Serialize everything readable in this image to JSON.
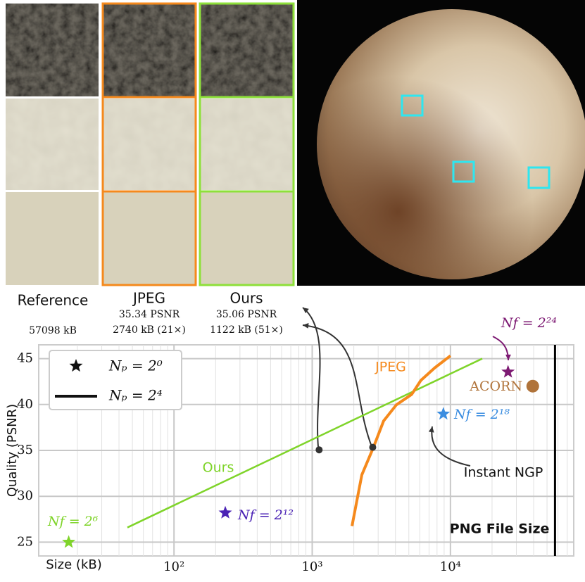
{
  "panels": [
    {
      "label": "Reference",
      "size": "57098 kB"
    },
    {
      "label": "JPEG",
      "psnr": "35.34 PSNR",
      "size": "2740 kB (21×)"
    },
    {
      "label": "Ours",
      "psnr": "35.06 PSNR",
      "size": "1122 kB (51×)"
    }
  ],
  "chart_data": {
    "type": "line",
    "xlabel": "Size (kB)",
    "ylabel": "Quality (PSNR)",
    "xscale": "log",
    "xlim": [
      10.5,
      78000
    ],
    "ylim": [
      23.5,
      46.5
    ],
    "xticks": [
      {
        "value": 100,
        "label": "10²"
      },
      {
        "value": 1000,
        "label": "10³"
      },
      {
        "value": 10000,
        "label": "10⁴"
      }
    ],
    "xminor": [
      20,
      30,
      40,
      50,
      60,
      70,
      80,
      90,
      200,
      300,
      400,
      500,
      600,
      700,
      800,
      900,
      2000,
      3000,
      4000,
      5000,
      6000,
      7000,
      8000,
      9000,
      20000,
      30000,
      40000,
      50000,
      60000,
      70000
    ],
    "yticks": [
      25,
      30,
      35,
      40,
      45
    ],
    "grid": true,
    "legend": [
      "Nₚ = 2⁰",
      "Nₚ = 2⁴"
    ],
    "series": [
      {
        "name": "Ours",
        "color": "#7fd42a",
        "x": [
          46,
          17000
        ],
        "values": [
          26.6,
          45
        ]
      },
      {
        "name": "JPEG",
        "color": "#f5891c",
        "x": [
          1940,
          2285,
          2755,
          3285,
          4060,
          5250,
          6110,
          7720,
          10000
        ],
        "values": [
          26.76,
          32.33,
          35.23,
          38.21,
          39.96,
          41.11,
          42.63,
          44.01,
          45.31
        ]
      }
    ],
    "highlights": [
      {
        "x": 1122,
        "y": 35.06
      },
      {
        "x": 2740,
        "y": 35.34
      }
    ],
    "points": [
      {
        "name": "Nf = 2²⁴",
        "color": "#7d1a73",
        "marker": "star",
        "x": 26100,
        "y": 43.55
      },
      {
        "name": "ACORN",
        "color": "#b0733a",
        "marker": "circle",
        "x": 39400,
        "y": 42.0
      },
      {
        "name": "Nf = 2¹⁸",
        "color": "#3b8de0",
        "marker": "star",
        "x": 8890,
        "y": 38.97
      },
      {
        "name": "Nf = 2¹²",
        "color": "#4b23b5",
        "marker": "star",
        "x": 235,
        "y": 28.2
      },
      {
        "name": "Nf = 2⁶",
        "color": "#7fd42a",
        "marker": "star",
        "x": 17.3,
        "y": 25.0
      }
    ],
    "annotation": "Instant NGP",
    "reference_line": {
      "x": 57098,
      "label": "PNG File Size"
    }
  }
}
